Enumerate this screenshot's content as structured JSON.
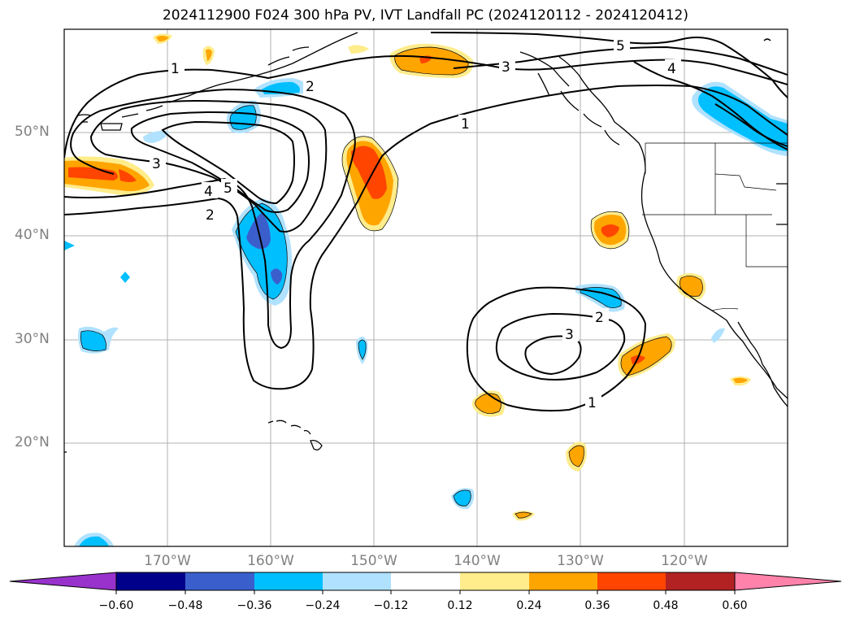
{
  "title": "2024112900 F024 300 hPa PV, IVT Landfall PC (2024120112 - 2024120412)",
  "lat_labels": [
    "50°N",
    "40°N",
    "30°N",
    "20°N"
  ],
  "lon_labels": [
    "170°W",
    "160°W",
    "150°W",
    "140°W",
    "130°W",
    "120°W"
  ],
  "colorbar": {
    "ticks": [
      "−0.60",
      "−0.48",
      "−0.36",
      "−0.24",
      "−0.12",
      "0.12",
      "0.24",
      "0.36",
      "0.48",
      "0.60"
    ],
    "colors": [
      "#9932cc",
      "#00008b",
      "#3a5fcd",
      "#00bfff",
      "#b0e2ff",
      "#ffffff",
      "#ffec8b",
      "#ffa500",
      "#ff4500",
      "#b22222",
      "#ff82ab"
    ]
  },
  "contour_labels": [
    "1",
    "2",
    "3",
    "4",
    "5"
  ]
}
